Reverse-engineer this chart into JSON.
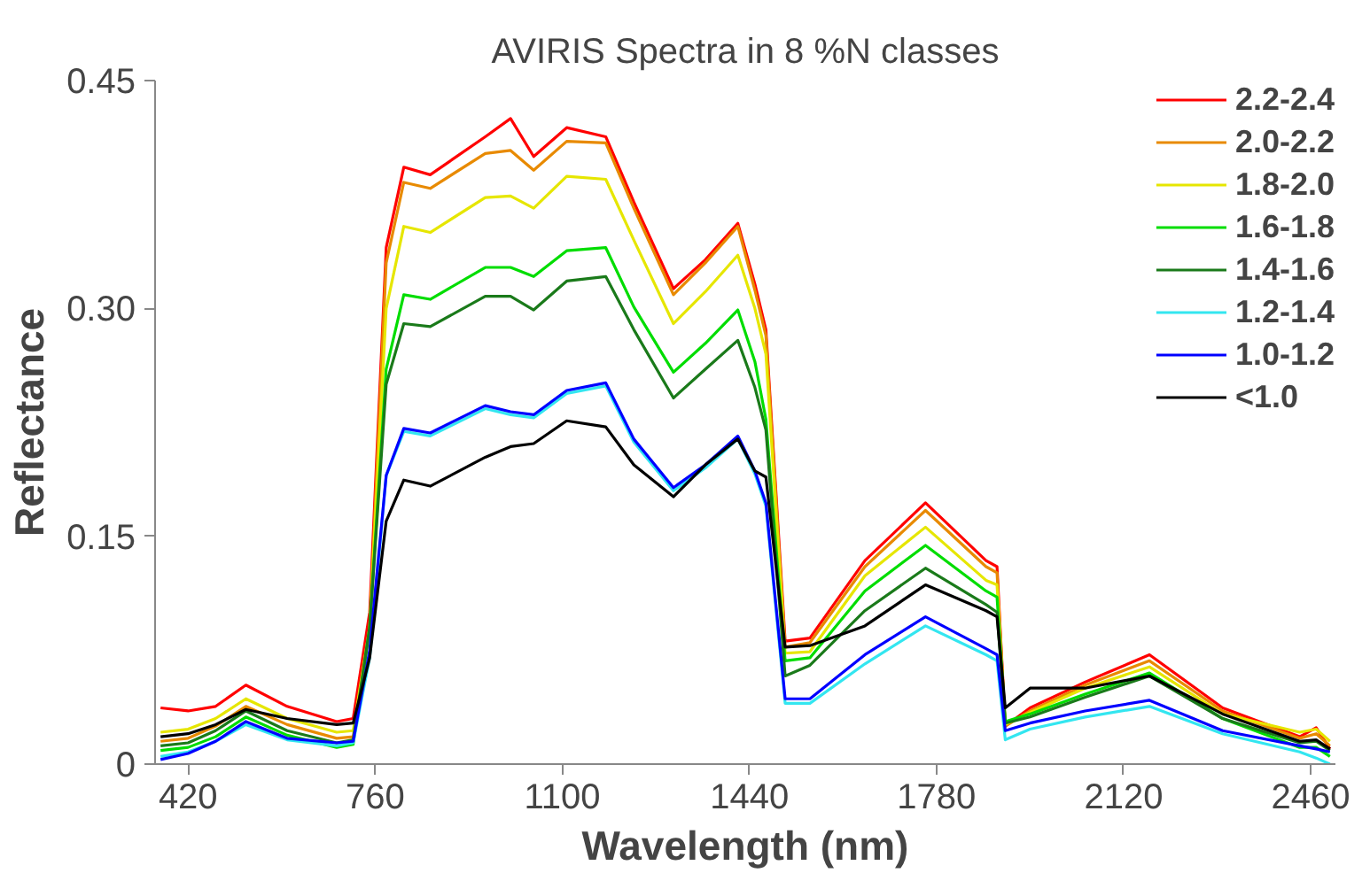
{
  "chart_data": {
    "type": "line",
    "title": "AVIRIS Spectra in 8 %N classes",
    "xlabel": "Wavelength (nm)",
    "ylabel": "Reflectance",
    "x": [
      370,
      420,
      470,
      525,
      600,
      690,
      720,
      750,
      780,
      812,
      860,
      960,
      1006,
      1048,
      1108,
      1179,
      1230,
      1302,
      1360,
      1419,
      1450,
      1470,
      1505,
      1550,
      1650,
      1760,
      1870,
      1890,
      1905,
      1950,
      2050,
      2167,
      2300,
      2440,
      2470,
      2495
    ],
    "xlim": [
      360,
      2505
    ],
    "xticks": [
      420,
      760,
      1100,
      1440,
      1780,
      2120,
      2460
    ],
    "ylim": [
      0,
      0.45
    ],
    "yticks": [
      0,
      0.15,
      {
        "value": 0.3,
        "label": "0.30"
      },
      0.45
    ],
    "legend": "top right",
    "series": [
      {
        "name": "2.2-2.4",
        "color": "#ff0000",
        "values": [
          0.037,
          0.035,
          0.038,
          0.052,
          0.038,
          0.028,
          0.03,
          0.1,
          0.34,
          0.393,
          0.388,
          0.413,
          0.425,
          0.4,
          0.419,
          0.413,
          0.37,
          0.313,
          0.332,
          0.356,
          0.316,
          0.286,
          0.081,
          0.083,
          0.134,
          0.172,
          0.134,
          0.13,
          0.025,
          0.037,
          0.054,
          0.072,
          0.037,
          0.018,
          0.024,
          0.01
        ]
      },
      {
        "name": "2.0-2.2",
        "color": "#e88a00",
        "values": [
          0.015,
          0.017,
          0.025,
          0.038,
          0.026,
          0.017,
          0.018,
          0.09,
          0.33,
          0.383,
          0.379,
          0.402,
          0.404,
          0.391,
          0.41,
          0.409,
          0.366,
          0.309,
          0.33,
          0.354,
          0.312,
          0.282,
          0.077,
          0.08,
          0.13,
          0.167,
          0.13,
          0.126,
          0.025,
          0.035,
          0.052,
          0.068,
          0.035,
          0.017,
          0.02,
          0.012
        ]
      },
      {
        "name": "1.8-2.0",
        "color": "#e6e600",
        "values": [
          0.021,
          0.023,
          0.03,
          0.043,
          0.03,
          0.021,
          0.022,
          0.09,
          0.3,
          0.354,
          0.35,
          0.373,
          0.374,
          0.366,
          0.387,
          0.385,
          0.345,
          0.29,
          0.311,
          0.335,
          0.3,
          0.27,
          0.073,
          0.074,
          0.124,
          0.156,
          0.121,
          0.118,
          0.026,
          0.034,
          0.05,
          0.064,
          0.033,
          0.021,
          0.023,
          0.015
        ]
      },
      {
        "name": "1.6-1.8",
        "color": "#00dd00",
        "values": [
          0.009,
          0.011,
          0.018,
          0.031,
          0.019,
          0.011,
          0.013,
          0.09,
          0.26,
          0.309,
          0.306,
          0.327,
          0.327,
          0.321,
          0.338,
          0.34,
          0.301,
          0.258,
          0.277,
          0.299,
          0.265,
          0.227,
          0.068,
          0.07,
          0.114,
          0.144,
          0.114,
          0.11,
          0.028,
          0.033,
          0.046,
          0.06,
          0.03,
          0.011,
          0.011,
          0.005
        ]
      },
      {
        "name": "1.4-1.6",
        "color": "#1a7a1a",
        "values": [
          0.012,
          0.014,
          0.022,
          0.035,
          0.022,
          0.014,
          0.016,
          0.09,
          0.25,
          0.29,
          0.288,
          0.308,
          0.308,
          0.299,
          0.318,
          0.321,
          0.286,
          0.241,
          0.26,
          0.279,
          0.248,
          0.22,
          0.058,
          0.065,
          0.101,
          0.129,
          0.105,
          0.1,
          0.027,
          0.031,
          0.044,
          0.058,
          0.03,
          0.014,
          0.015,
          0.009
        ]
      },
      {
        "name": "1.2-1.4",
        "color": "#33e6f0",
        "values": [
          0.005,
          0.008,
          0.015,
          0.026,
          0.016,
          0.012,
          0.014,
          0.07,
          0.19,
          0.219,
          0.216,
          0.234,
          0.23,
          0.228,
          0.244,
          0.249,
          0.212,
          0.18,
          0.195,
          0.214,
          0.191,
          0.17,
          0.04,
          0.04,
          0.066,
          0.091,
          0.072,
          0.068,
          0.016,
          0.023,
          0.031,
          0.038,
          0.02,
          0.008,
          0.004,
          0.0
        ]
      },
      {
        "name": "1.0-1.2",
        "color": "#0000ff",
        "values": [
          0.003,
          0.007,
          0.015,
          0.028,
          0.017,
          0.014,
          0.015,
          0.075,
          0.19,
          0.221,
          0.218,
          0.236,
          0.232,
          0.23,
          0.246,
          0.251,
          0.214,
          0.182,
          0.197,
          0.216,
          0.193,
          0.172,
          0.043,
          0.043,
          0.072,
          0.097,
          0.076,
          0.072,
          0.022,
          0.027,
          0.035,
          0.042,
          0.022,
          0.012,
          0.01,
          0.008
        ]
      },
      {
        "name": "<1.0",
        "color": "#000000",
        "values": [
          0.018,
          0.02,
          0.026,
          0.036,
          0.03,
          0.026,
          0.027,
          0.07,
          0.16,
          0.187,
          0.183,
          0.202,
          0.209,
          0.211,
          0.226,
          0.222,
          0.197,
          0.176,
          0.197,
          0.214,
          0.193,
          0.189,
          0.077,
          0.078,
          0.091,
          0.118,
          0.101,
          0.097,
          0.037,
          0.05,
          0.05,
          0.058,
          0.033,
          0.015,
          0.016,
          0.01
        ]
      }
    ]
  }
}
